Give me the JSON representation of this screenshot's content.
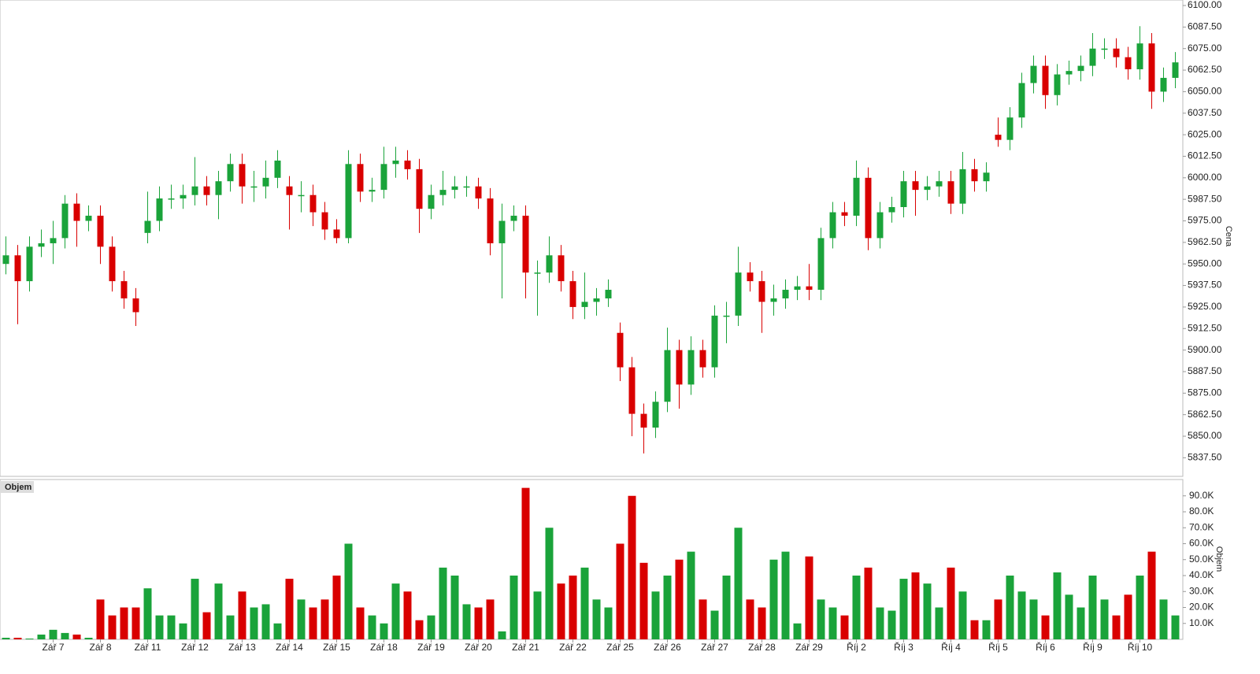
{
  "chart_data": {
    "type": "candlestick",
    "price_axis_label": "Cena",
    "volume_panel_label": "Objem",
    "volume_axis_label": "Objem",
    "up_color": "#1aa33a",
    "down_color": "#d90000",
    "categories": [
      null,
      null,
      null,
      null,
      "Zář 7",
      null,
      null,
      null,
      "Zář 8",
      null,
      null,
      null,
      "Zář 11",
      null,
      null,
      null,
      "Zář 12",
      null,
      null,
      null,
      "Zář 13",
      null,
      null,
      null,
      "Zář 14",
      null,
      null,
      null,
      "Zář 15",
      null,
      null,
      null,
      "Zář 18",
      null,
      null,
      null,
      "Zář 19",
      null,
      null,
      null,
      "Zář 20",
      null,
      null,
      null,
      "Zář 21",
      null,
      null,
      null,
      "Zář 22",
      null,
      null,
      null,
      "Zář 25",
      null,
      null,
      null,
      "Zář 26",
      null,
      null,
      null,
      "Zář 27",
      null,
      null,
      null,
      "Zář 28",
      null,
      null,
      null,
      "Zář 29",
      null,
      null,
      null,
      "Říj 2",
      null,
      null,
      null,
      "Říj 3",
      null,
      null,
      null,
      "Říj 4",
      null,
      null,
      null,
      "Říj 5",
      null,
      null,
      null,
      "Říj 6",
      null,
      null,
      null,
      "Říj 9",
      null,
      null,
      null,
      "Říj 10",
      null,
      null,
      null
    ],
    "open": [
      5950,
      5955,
      5940,
      5960,
      5962,
      5965,
      5985,
      5975,
      5978,
      5960,
      5940,
      5930,
      5968,
      5975,
      5988,
      5988,
      5990,
      5995,
      5990,
      5998,
      6008,
      5995,
      5995,
      6000,
      5995,
      5990,
      5990,
      5980,
      5970,
      5965,
      6008,
      5992,
      5993,
      6008,
      6010,
      6005,
      5982,
      5990,
      5993,
      5995,
      5995,
      5988,
      5962,
      5975,
      5978,
      5945,
      5945,
      5955,
      5940,
      5925,
      5928,
      5930,
      5910,
      5890,
      5863,
      5855,
      5870,
      5900,
      5880,
      5900,
      5890,
      5920,
      5920,
      5945,
      5940,
      5928,
      5930,
      5935,
      5937,
      5935,
      5965,
      5980,
      5978,
      6000,
      5965,
      5980,
      5983,
      5998,
      5993,
      5995,
      5998,
      5985,
      6005,
      5998,
      6025,
      6022,
      6035,
      6055,
      6065,
      6048,
      6060,
      6062,
      6065,
      6075,
      6075,
      6070,
      6063,
      6078,
      6050,
      6058
    ],
    "high": [
      5966,
      5961,
      5966,
      5970,
      5975,
      5990,
      5991,
      5984,
      5984,
      5966,
      5946,
      5936,
      5992,
      5995,
      5996,
      5996,
      6012,
      6001,
      6004,
      6014,
      6014,
      6004,
      6010,
      6016,
      6001,
      5998,
      5996,
      5986,
      5976,
      6016,
      6014,
      6000,
      6018,
      6018,
      6016,
      6011,
      5996,
      6004,
      6001,
      6001,
      6000,
      5994,
      5985,
      5984,
      5984,
      5952,
      5966,
      5961,
      5946,
      5945,
      5936,
      5941,
      5916,
      5896,
      5869,
      5876,
      5913,
      5906,
      5908,
      5906,
      5926,
      5928,
      5960,
      5951,
      5946,
      5938,
      5941,
      5943,
      5950,
      5971,
      5986,
      5986,
      6010,
      6006,
      5986,
      5989,
      6004,
      6004,
      6001,
      6004,
      6004,
      6015,
      6011,
      6009,
      6035,
      6041,
      6061,
      6071,
      6071,
      6066,
      6068,
      6071,
      6084,
      6081,
      6081,
      6076,
      6088,
      6084,
      6064,
      6073
    ],
    "low": [
      5944,
      5915,
      5934,
      5954,
      5950,
      5959,
      5960,
      5969,
      5950,
      5934,
      5924,
      5914,
      5962,
      5969,
      5982,
      5982,
      5984,
      5984,
      5976,
      5992,
      5985,
      5986,
      5988,
      5994,
      5970,
      5980,
      5972,
      5964,
      5962,
      5962,
      5986,
      5986,
      5988,
      6000,
      5999,
      5968,
      5976,
      5984,
      5988,
      5989,
      5982,
      5955,
      5930,
      5969,
      5930,
      5920,
      5939,
      5934,
      5918,
      5918,
      5920,
      5925,
      5882,
      5850,
      5840,
      5849,
      5864,
      5866,
      5874,
      5884,
      5884,
      5904,
      5914,
      5934,
      5910,
      5920,
      5924,
      5929,
      5929,
      5929,
      5959,
      5972,
      5972,
      5958,
      5959,
      5974,
      5977,
      5978,
      5987,
      5989,
      5979,
      5979,
      5992,
      5992,
      6018,
      6016,
      6029,
      6049,
      6040,
      6042,
      6054,
      6056,
      6059,
      6069,
      6064,
      6057,
      6057,
      6040,
      6044,
      6052
    ],
    "close": [
      5955,
      5940,
      5960,
      5962,
      5965,
      5985,
      5975,
      5978,
      5960,
      5940,
      5930,
      5922,
      5975,
      5988,
      5988,
      5990,
      5995,
      5990,
      5998,
      6008,
      5995,
      5995,
      6000,
      6010,
      5990,
      5990,
      5980,
      5970,
      5965,
      6008,
      5992,
      5993,
      6008,
      6010,
      6005,
      5982,
      5990,
      5993,
      5995,
      5995,
      5988,
      5962,
      5975,
      5978,
      5945,
      5945,
      5955,
      5940,
      5925,
      5928,
      5930,
      5935,
      5890,
      5863,
      5855,
      5870,
      5900,
      5880,
      5900,
      5890,
      5920,
      5920,
      5945,
      5940,
      5928,
      5930,
      5935,
      5937,
      5935,
      5965,
      5980,
      5978,
      6000,
      5965,
      5980,
      5983,
      5998,
      5993,
      5995,
      5998,
      5985,
      6005,
      5998,
      6003,
      6022,
      6035,
      6055,
      6065,
      6048,
      6060,
      6062,
      6065,
      6075,
      6075,
      6070,
      6063,
      6078,
      6050,
      6058,
      6067
    ],
    "volume": [
      1000,
      1000,
      500,
      3000,
      6000,
      4000,
      3000,
      1000,
      25000,
      15000,
      20000,
      20000,
      32000,
      15000,
      15000,
      10000,
      38000,
      17000,
      35000,
      15000,
      30000,
      20000,
      22000,
      10000,
      38000,
      25000,
      20000,
      25000,
      40000,
      60000,
      20000,
      15000,
      10000,
      35000,
      30000,
      12000,
      15000,
      45000,
      40000,
      22000,
      20000,
      25000,
      5000,
      40000,
      95000,
      30000,
      70000,
      35000,
      40000,
      45000,
      25000,
      20000,
      60000,
      90000,
      48000,
      30000,
      40000,
      50000,
      55000,
      25000,
      18000,
      40000,
      70000,
      25000,
      20000,
      50000,
      55000,
      10000,
      52000,
      25000,
      20000,
      15000,
      40000,
      45000,
      20000,
      18000,
      38000,
      42000,
      35000,
      20000,
      45000,
      30000,
      12000,
      12000,
      25000,
      40000,
      30000,
      25000,
      15000,
      42000,
      28000,
      20000,
      40000,
      25000,
      15000,
      28000,
      40000,
      55000,
      25000,
      15000
    ],
    "ylim": [
      5826.7,
      6103.2
    ],
    "yticks": [
      {
        "value": 5837.5,
        "label": "5837.50"
      },
      {
        "value": 5850,
        "label": "5850.00"
      },
      {
        "value": 5862.5,
        "label": "5862.50"
      },
      {
        "value": 5875,
        "label": "5875.00"
      },
      {
        "value": 5887.5,
        "label": "5887.50"
      },
      {
        "value": 5900,
        "label": "5900.00"
      },
      {
        "value": 5912.5,
        "label": "5912.50"
      },
      {
        "value": 5925,
        "label": "5925.00"
      },
      {
        "value": 5937.5,
        "label": "5937.50"
      },
      {
        "value": 5950,
        "label": "5950.00"
      },
      {
        "value": 5962.5,
        "label": "5962.50"
      },
      {
        "value": 5975,
        "label": "5975.00"
      },
      {
        "value": 5987.5,
        "label": "5987.50"
      },
      {
        "value": 6000,
        "label": "6000.00"
      },
      {
        "value": 6012.5,
        "label": "6012.50"
      },
      {
        "value": 6025,
        "label": "6025.00"
      },
      {
        "value": 6037.5,
        "label": "6037.50"
      },
      {
        "value": 6050,
        "label": "6050.00"
      },
      {
        "value": 6062.5,
        "label": "6062.50"
      },
      {
        "value": 6075,
        "label": "6075.00"
      },
      {
        "value": 6087.5,
        "label": "6087.50"
      },
      {
        "value": 6100,
        "label": "6100.00"
      }
    ],
    "y2lim": [
      0,
      100000
    ],
    "y2ticks": [
      {
        "value": 10000,
        "label": "10.0K"
      },
      {
        "value": 20000,
        "label": "20.0K"
      },
      {
        "value": 30000,
        "label": "30.0K"
      },
      {
        "value": 40000,
        "label": "40.0K"
      },
      {
        "value": 50000,
        "label": "50.0K"
      },
      {
        "value": 60000,
        "label": "60.0K"
      },
      {
        "value": 70000,
        "label": "70.0K"
      },
      {
        "value": 80000,
        "label": "80.0K"
      },
      {
        "value": 90000,
        "label": "90.0K"
      }
    ]
  }
}
